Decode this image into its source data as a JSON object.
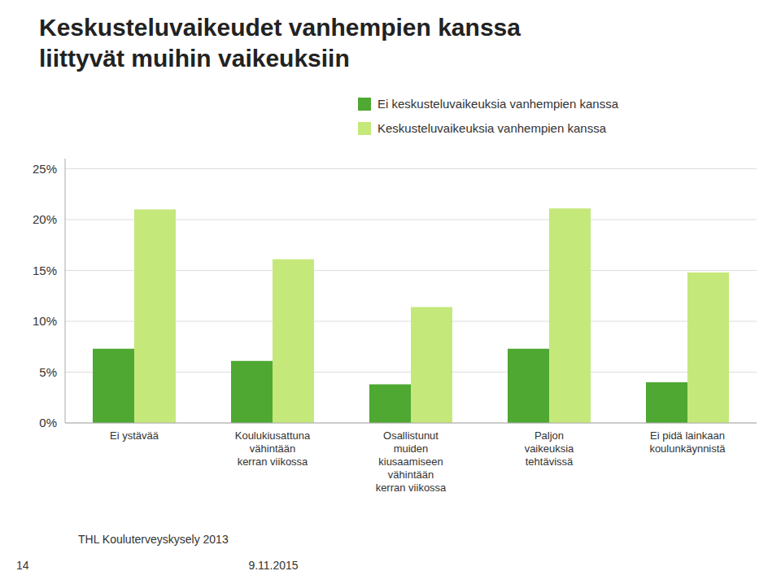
{
  "chart_data": {
    "type": "bar",
    "title": "Keskusteluvaikeudet vanhempien kanssa\nliittyvät muihin vaikeuksiin",
    "categories": [
      "Ei ystävää",
      "Koulukiusattuna\nvähintään\nkerran viikossa",
      "Osallistunut\nmuiden\nkiusaamiseen\nvähintään\nkerran viikossa",
      "Paljon\nvaikeuksia\ntehtävissä",
      "Ei pidä lainkaan\nkoulunkäynnistä"
    ],
    "series": [
      {
        "name": "Ei keskusteluvaikeuksia vanhempien kanssa",
        "color": "#4ea832",
        "values": [
          7.3,
          6.1,
          3.8,
          7.3,
          4.0
        ]
      },
      {
        "name": "Keskusteluvaikeuksia vanhempien kanssa",
        "color": "#c5e87a",
        "values": [
          21.0,
          16.1,
          11.4,
          21.1,
          14.8
        ]
      }
    ],
    "ylim": [
      0,
      26
    ],
    "yticks": [
      {
        "value": 0,
        "label": "0%"
      },
      {
        "value": 5,
        "label": "5%"
      },
      {
        "value": 10,
        "label": "10%"
      },
      {
        "value": 15,
        "label": "15%"
      },
      {
        "value": 20,
        "label": "20%"
      },
      {
        "value": 25,
        "label": "25%"
      }
    ],
    "grid": true,
    "legend": "top",
    "annotations": [
      "THL Kouluterveyskysely 2013",
      "9.11.2015",
      "14"
    ]
  }
}
